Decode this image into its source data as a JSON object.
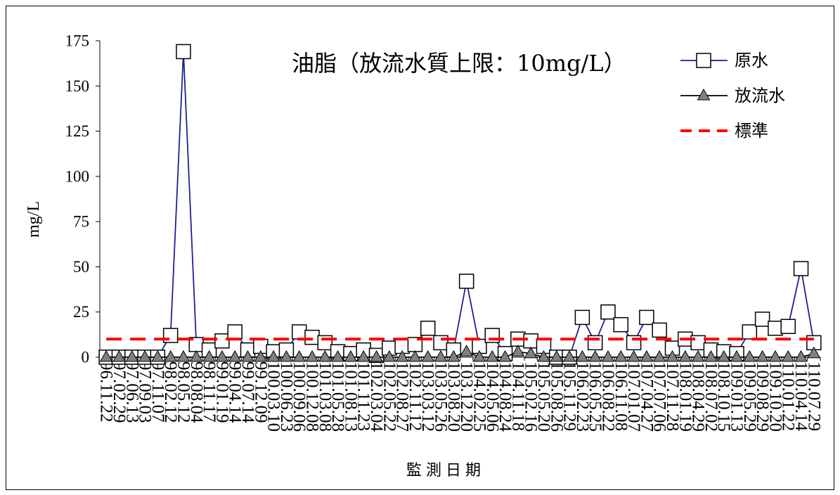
{
  "chart_data": {
    "type": "line",
    "title": "油脂（放流水質上限：10mg/L）",
    "xlabel": "監測日期",
    "ylabel": "mg/L",
    "ylim": [
      0,
      175
    ],
    "yticks": [
      0,
      25,
      50,
      75,
      100,
      125,
      150,
      175
    ],
    "grid": false,
    "legend_position": "top-right",
    "categories": [
      "96.11.22",
      "97.02.29",
      "97.06.13",
      "97.09.03",
      "97.11.07",
      "98.02.12",
      "98.05.12",
      "98.08.04",
      "98.11.17",
      "99.01.19",
      "99.04.14",
      "99.07.14",
      "99.12.09",
      "100.03.10",
      "100.06.23",
      "100.09.06",
      "100.12.08",
      "101.03.08",
      "101.05.28",
      "101.08.13",
      "101.11.23",
      "102.03.04",
      "102.05.22",
      "102.08.27",
      "102.11.12",
      "103.03.12",
      "103.05.26",
      "103.08.20",
      "103.12.20",
      "104.02.25",
      "104.05.06",
      "104.08.24",
      "104.11.18",
      "105.02.16",
      "105.05.20",
      "105.08.26",
      "105.11.29",
      "106.02.23",
      "106.05.25",
      "106.08.22",
      "106.11.08",
      "107.01.07",
      "107.04.27",
      "107.07.06",
      "107.11.28",
      "108.01.19",
      "108.04.29",
      "108.07.02",
      "108.10.15",
      "109.01.13",
      "109.05.29",
      "109.08.29",
      "109.10.20",
      "110.01.22",
      "110.04.14",
      "110.07.29"
    ],
    "series": [
      {
        "name": "原水",
        "marker": "square-marker",
        "line_color": "#1b1b8f",
        "marker_fill": "#ffffff",
        "marker_stroke": "#000000",
        "values": [
          0,
          0,
          0,
          0,
          0,
          12,
          169,
          7,
          4,
          9,
          14,
          4,
          6,
          3,
          4,
          14,
          11,
          8,
          3,
          2,
          4,
          1,
          5,
          6,
          7,
          16,
          8,
          4,
          42,
          6,
          12,
          2,
          10,
          9,
          6,
          0,
          0,
          22,
          8,
          25,
          18,
          8,
          22,
          15,
          5,
          10,
          8,
          4,
          3,
          2,
          14,
          21,
          16,
          17,
          49,
          8
        ]
      },
      {
        "name": "放流水",
        "marker": "triangle-marker",
        "line_color": "#000000",
        "marker_fill": "#808080",
        "marker_stroke": "#000000",
        "values": [
          0,
          0,
          0,
          0,
          0,
          0,
          0,
          0,
          0,
          0,
          0,
          0,
          0,
          0,
          0,
          0,
          0,
          0,
          0,
          0,
          0,
          0,
          0,
          0,
          0,
          0,
          0,
          0,
          3,
          0,
          0,
          0,
          3,
          2,
          0,
          0,
          0,
          0,
          0,
          0,
          0,
          0,
          0,
          0,
          0,
          0,
          0,
          0,
          0,
          0,
          0,
          0,
          0,
          0,
          0,
          2
        ]
      },
      {
        "name": "標準",
        "marker": null,
        "line_color": "#ff0000",
        "dashed": true,
        "values": [
          10,
          10,
          10,
          10,
          10,
          10,
          10,
          10,
          10,
          10,
          10,
          10,
          10,
          10,
          10,
          10,
          10,
          10,
          10,
          10,
          10,
          10,
          10,
          10,
          10,
          10,
          10,
          10,
          10,
          10,
          10,
          10,
          10,
          10,
          10,
          10,
          10,
          10,
          10,
          10,
          10,
          10,
          10,
          10,
          10,
          10,
          10,
          10,
          10,
          10,
          10,
          10,
          10,
          10,
          10,
          10
        ]
      }
    ]
  }
}
